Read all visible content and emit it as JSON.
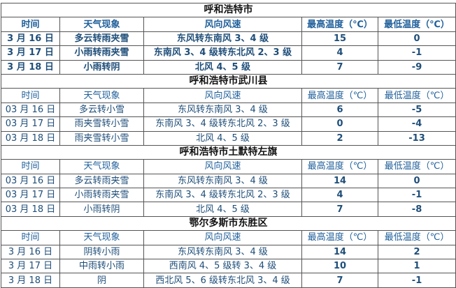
{
  "headers": [
    "时间",
    "天气现象",
    "风向风速",
    "最高温度（℃）",
    "最低温度（℃）"
  ],
  "sections": [
    {
      "title": "呼和浩特市",
      "rows": [
        [
          "3 月 16 日",
          "多云转雨夹雪",
          "东风转东南风 3、4 级",
          "15",
          "0"
        ],
        [
          "3 月 17 日",
          "小雨转雨夹雪",
          "东南风 3、4 级转东北风 2、3 级",
          "4",
          "-1"
        ],
        [
          "3 月 18 日",
          "小雨转阴",
          "北风 4、5 级",
          "7",
          "-9"
        ]
      ]
    },
    {
      "title": "呼和浩特市武川县",
      "rows": [
        [
          "03 月 16 日",
          "多云转小雪",
          "东风转东南风 3、4 级",
          "6",
          "-5"
        ],
        [
          "03 月 17 日",
          "雨夹雪转小雪",
          "东南风 3、4 级转东北风 2、3 级",
          "0",
          "-4"
        ],
        [
          "03 月 18 日",
          "雨夹雪转小雪",
          "北风 4、5 级",
          "2",
          "-13"
        ]
      ]
    },
    {
      "title": "呼和浩特市土默特左旗",
      "rows": [
        [
          "03 月 16 日",
          "多云转雨夹雪",
          "东风转东南风 3、4 级",
          "14",
          "0"
        ],
        [
          "03 月 17 日",
          "小雨转雨夹雪",
          "东南风 3、4 级转东北风 2、3 级",
          "4",
          "-1"
        ],
        [
          "03 月 18 日",
          "小雨转阴",
          "北风 4、5 级",
          "7",
          "-8"
        ]
      ]
    },
    {
      "title": "鄂尔多斯市东胜区",
      "rows": [
        [
          "3 月 16 日",
          "阴转小雨",
          "东风转东南风 3、4 级",
          "14",
          "2"
        ],
        [
          "3 月 17 日",
          "中雨转小雨",
          "西南风 4、5 级转 3、4 级",
          "10",
          "1"
        ],
        [
          "3 月 18 日",
          "阴",
          "西北风 5、6 级转东北风 3、4 级",
          "7",
          "-1"
        ]
      ]
    }
  ]
}
